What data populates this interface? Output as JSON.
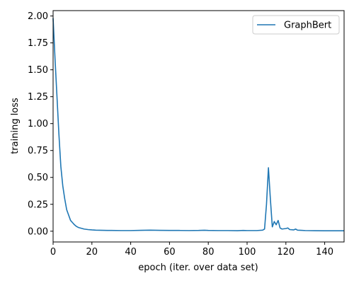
{
  "chart_data": {
    "type": "line",
    "xlabel": "epoch (iter. over data set)",
    "ylabel": "training loss",
    "xlim": [
      0,
      150
    ],
    "ylim": [
      -0.1,
      2.05
    ],
    "xticks": [
      0,
      20,
      40,
      60,
      80,
      100,
      120,
      140
    ],
    "yticks": [
      0.0,
      0.25,
      0.5,
      0.75,
      1.0,
      1.25,
      1.5,
      1.75,
      2.0
    ],
    "xtick_labels": [
      "0",
      "20",
      "40",
      "60",
      "80",
      "100",
      "120",
      "140"
    ],
    "ytick_labels": [
      "0.00",
      "0.25",
      "0.50",
      "0.75",
      "1.00",
      "1.25",
      "1.50",
      "1.75",
      "2.00"
    ],
    "grid": false,
    "legend_position": "top-right",
    "series": [
      {
        "name": "GraphBert",
        "color": "#1f77b4",
        "x": [
          0,
          1,
          2,
          3,
          4,
          5,
          6,
          7,
          8,
          9,
          10,
          11,
          12,
          13,
          14,
          15,
          16,
          18,
          20,
          22,
          24,
          26,
          28,
          30,
          35,
          40,
          45,
          50,
          55,
          60,
          65,
          70,
          75,
          78,
          80,
          85,
          90,
          95,
          98,
          100,
          105,
          108,
          109,
          110,
          111,
          112,
          113,
          114,
          115,
          116,
          117,
          118,
          120,
          121,
          122,
          124,
          125,
          126,
          128,
          130,
          135,
          140,
          145,
          150
        ],
        "y": [
          1.98,
          1.6,
          1.25,
          0.9,
          0.6,
          0.42,
          0.3,
          0.2,
          0.15,
          0.1,
          0.08,
          0.06,
          0.045,
          0.035,
          0.03,
          0.025,
          0.02,
          0.015,
          0.012,
          0.01,
          0.009,
          0.008,
          0.007,
          0.007,
          0.006,
          0.006,
          0.008,
          0.01,
          0.008,
          0.007,
          0.007,
          0.006,
          0.007,
          0.009,
          0.007,
          0.006,
          0.006,
          0.005,
          0.007,
          0.006,
          0.006,
          0.01,
          0.02,
          0.25,
          0.59,
          0.3,
          0.04,
          0.09,
          0.06,
          0.1,
          0.03,
          0.02,
          0.025,
          0.03,
          0.015,
          0.012,
          0.02,
          0.01,
          0.008,
          0.006,
          0.005,
          0.004,
          0.004,
          0.004
        ]
      }
    ]
  }
}
